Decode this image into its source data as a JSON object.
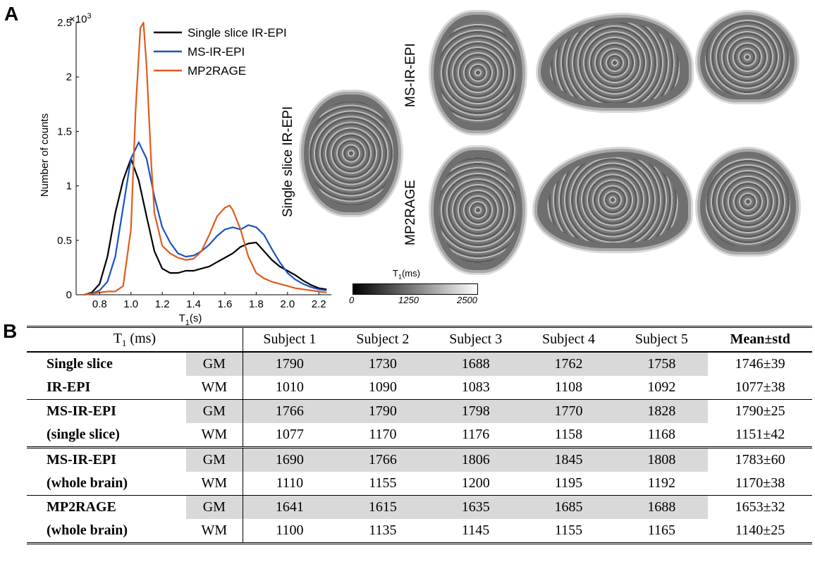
{
  "panel_a_label": "A",
  "panel_b_label": "B",
  "chart_data": {
    "type": "line",
    "title": "",
    "xlabel": "T",
    "xlabel_sub": "1",
    "xlabel_unit": "(s)",
    "ylabel": "Number of counts",
    "y_multiplier": "×10",
    "y_multiplier_exp": "3",
    "xlim": [
      0.65,
      2.28
    ],
    "ylim": [
      0,
      2.5
    ],
    "x_ticks": [
      "0.8",
      "1.0",
      "1.2",
      "1.4",
      "1.6",
      "1.8",
      "2.0",
      "2.2"
    ],
    "x_tick_values": [
      0.8,
      1.0,
      1.2,
      1.4,
      1.6,
      1.8,
      2.0,
      2.2
    ],
    "y_ticks": [
      "0",
      "0.5",
      "1",
      "1.5",
      "2",
      "2.5"
    ],
    "y_tick_values": [
      0,
      0.5,
      1,
      1.5,
      2,
      2.5
    ],
    "legend_position": "top-right",
    "series": [
      {
        "name": "Single slice IR-EPI",
        "color": "#000000",
        "x": [
          0.7,
          0.75,
          0.8,
          0.85,
          0.9,
          0.95,
          1.0,
          1.05,
          1.1,
          1.15,
          1.2,
          1.25,
          1.3,
          1.35,
          1.4,
          1.45,
          1.5,
          1.55,
          1.6,
          1.65,
          1.7,
          1.75,
          1.8,
          1.85,
          1.9,
          1.95,
          2.0,
          2.05,
          2.1,
          2.15,
          2.2,
          2.25
        ],
        "y": [
          0.0,
          0.02,
          0.1,
          0.35,
          0.75,
          1.05,
          1.25,
          1.05,
          0.72,
          0.4,
          0.24,
          0.2,
          0.2,
          0.22,
          0.22,
          0.24,
          0.26,
          0.3,
          0.34,
          0.38,
          0.44,
          0.47,
          0.48,
          0.4,
          0.32,
          0.26,
          0.22,
          0.18,
          0.13,
          0.09,
          0.06,
          0.05
        ]
      },
      {
        "name": "MS-IR-EPI",
        "color": "#1a52c4",
        "x": [
          0.7,
          0.75,
          0.8,
          0.85,
          0.9,
          0.95,
          1.0,
          1.05,
          1.1,
          1.15,
          1.2,
          1.25,
          1.3,
          1.35,
          1.4,
          1.45,
          1.5,
          1.55,
          1.6,
          1.65,
          1.7,
          1.75,
          1.8,
          1.85,
          1.9,
          1.95,
          2.0,
          2.05,
          2.1,
          2.15,
          2.2,
          2.25
        ],
        "y": [
          0.0,
          0.01,
          0.04,
          0.12,
          0.35,
          0.8,
          1.25,
          1.4,
          1.25,
          0.9,
          0.62,
          0.48,
          0.38,
          0.35,
          0.36,
          0.4,
          0.46,
          0.54,
          0.6,
          0.62,
          0.6,
          0.64,
          0.62,
          0.55,
          0.42,
          0.3,
          0.2,
          0.14,
          0.1,
          0.07,
          0.05,
          0.04
        ]
      },
      {
        "name": "MP2RAGE",
        "color": "#e05a1c",
        "x": [
          0.7,
          0.75,
          0.8,
          0.85,
          0.9,
          0.95,
          1.0,
          1.03,
          1.06,
          1.08,
          1.1,
          1.13,
          1.15,
          1.2,
          1.25,
          1.3,
          1.35,
          1.4,
          1.45,
          1.5,
          1.55,
          1.6,
          1.63,
          1.65,
          1.7,
          1.75,
          1.8,
          1.85,
          1.9,
          1.95,
          2.0,
          2.05,
          2.1,
          2.15,
          2.2,
          2.25
        ],
        "y": [
          0.0,
          0.01,
          0.02,
          0.03,
          0.03,
          0.08,
          0.6,
          1.7,
          2.45,
          2.5,
          2.1,
          1.2,
          0.75,
          0.45,
          0.38,
          0.34,
          0.32,
          0.33,
          0.4,
          0.55,
          0.72,
          0.8,
          0.82,
          0.78,
          0.6,
          0.35,
          0.2,
          0.15,
          0.12,
          0.1,
          0.08,
          0.06,
          0.05,
          0.04,
          0.03,
          0.02
        ]
      }
    ]
  },
  "brain_labels": {
    "single": "Single slice IR-EPI",
    "ms": "MS-IR-EPI",
    "mp2rage": "MP2RAGE"
  },
  "colorbar": {
    "title": "T",
    "title_sub": "1",
    "title_unit": "(ms)",
    "ticks": [
      "0",
      "1250",
      "2500"
    ]
  },
  "table": {
    "header": {
      "t1": "T",
      "t1_sub": "1",
      "t1_unit": " (ms)",
      "subjects": [
        "Subject 1",
        "Subject 2",
        "Subject 3",
        "Subject 4",
        "Subject 5"
      ],
      "mean": "Mean±std"
    },
    "groups": [
      {
        "label1": "Single slice",
        "label2": "IR-EPI",
        "gm": [
          "1790",
          "1730",
          "1688",
          "1762",
          "1758",
          "1746±39"
        ],
        "wm": [
          "1010",
          "1090",
          "1083",
          "1108",
          "1092",
          "1077±38"
        ]
      },
      {
        "label1": "MS-IR-EPI",
        "label2": "(single slice)",
        "gm": [
          "1766",
          "1790",
          "1798",
          "1770",
          "1828",
          "1790±25"
        ],
        "wm": [
          "1077",
          "1170",
          "1176",
          "1158",
          "1168",
          "1151±42"
        ]
      },
      {
        "label1": "MS-IR-EPI",
        "label2": "(whole brain)",
        "gm": [
          "1690",
          "1766",
          "1806",
          "1845",
          "1808",
          "1783±60"
        ],
        "wm": [
          "1110",
          "1155",
          "1200",
          "1195",
          "1192",
          "1170±38"
        ]
      },
      {
        "label1": "MP2RAGE",
        "label2": "(whole brain)",
        "gm": [
          "1641",
          "1615",
          "1635",
          "1685",
          "1688",
          "1653±32"
        ],
        "wm": [
          "1100",
          "1135",
          "1145",
          "1155",
          "1165",
          "1140±25"
        ]
      }
    ],
    "tissue_gm": "GM",
    "tissue_wm": "WM"
  }
}
